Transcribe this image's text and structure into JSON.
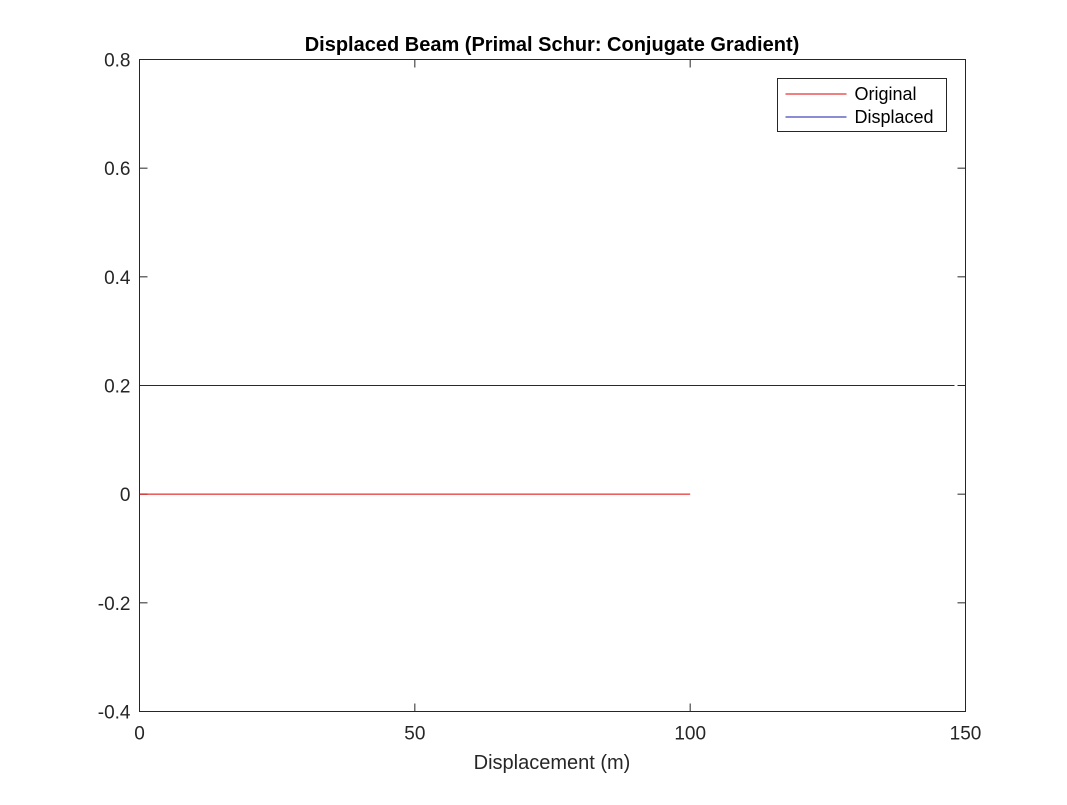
{
  "chart_data": {
    "type": "line",
    "title": "Displaced Beam (Primal Schur: Conjugate Gradient)",
    "xlabel": "Displacement (m)",
    "ylabel": "",
    "xlim": [
      0,
      150
    ],
    "ylim": [
      -0.4,
      0.8
    ],
    "xticks": [
      0,
      50,
      100,
      150
    ],
    "xtick_labels": [
      "0",
      "50",
      "100",
      "150"
    ],
    "yticks": [
      -0.4,
      -0.2,
      0,
      0.2,
      0.4,
      0.6,
      0.8
    ],
    "ytick_labels": [
      "-0.4",
      "-0.2",
      "0",
      "0.2",
      "0.4",
      "0.6",
      "0.8"
    ],
    "grid": false,
    "legend_position": "top-right",
    "series": [
      {
        "name": "Original",
        "color": "#e00000",
        "x": [
          0,
          100
        ],
        "y": [
          0,
          0
        ]
      },
      {
        "name": "Displaced",
        "color": "#1a1aa8",
        "x": [
          0,
          148
        ],
        "y": [
          0.2,
          0.2
        ]
      }
    ]
  }
}
